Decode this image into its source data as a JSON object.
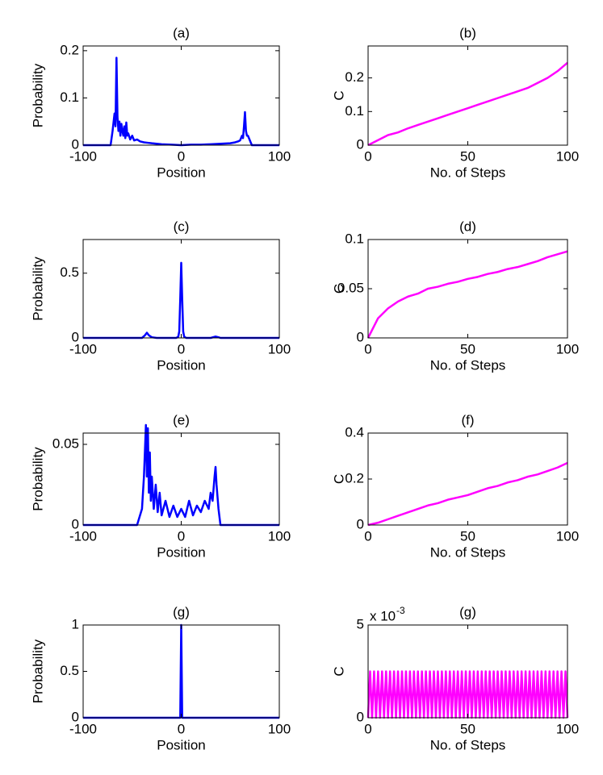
{
  "chart_data": [
    {
      "type": "line",
      "title": "(a)",
      "xlabel": "Position",
      "ylabel": "Probability",
      "x": [
        -100,
        -72,
        -70,
        -68,
        -67,
        -66,
        -65,
        -64,
        -63,
        -62,
        -61,
        -60,
        -59,
        -58,
        -57,
        -56,
        -55,
        -54,
        -52,
        -50,
        -48,
        -45,
        -42,
        -38,
        -34,
        -30,
        -25,
        -20,
        -10,
        0,
        10,
        20,
        30,
        40,
        50,
        55,
        58,
        60,
        62,
        63,
        64,
        65,
        66,
        67,
        68,
        70,
        72,
        100
      ],
      "series": [
        {
          "color": "#0000ff",
          "values": [
            0,
            0,
            0.03,
            0.067,
            0.04,
            0.185,
            0.06,
            0.03,
            0.05,
            0.02,
            0.045,
            0.03,
            0.02,
            0.04,
            0.015,
            0.048,
            0.02,
            0.025,
            0.012,
            0.02,
            0.01,
            0.012,
            0.008,
            0.006,
            0.005,
            0.004,
            0.003,
            0.002,
            0.001,
            0,
            0.001,
            0.001,
            0.002,
            0.003,
            0.004,
            0.006,
            0.008,
            0.01,
            0.02,
            0.015,
            0.04,
            0.07,
            0.03,
            0.02,
            0.02,
            0.01,
            0,
            0
          ]
        }
      ],
      "xlim": [
        -100,
        100
      ],
      "xticks": [
        -100,
        0,
        100
      ],
      "ylim": [
        0,
        0.21
      ],
      "yticks": [
        0,
        0.1,
        0.2
      ]
    },
    {
      "type": "line",
      "title": "(b)",
      "xlabel": "No. of Steps",
      "ylabel": "C",
      "x": [
        0,
        5,
        10,
        15,
        20,
        25,
        30,
        35,
        40,
        45,
        50,
        55,
        60,
        65,
        70,
        75,
        80,
        85,
        90,
        95,
        100
      ],
      "series": [
        {
          "color": "#ff00ff",
          "values": [
            0,
            0.015,
            0.03,
            0.038,
            0.05,
            0.06,
            0.07,
            0.08,
            0.09,
            0.1,
            0.11,
            0.12,
            0.13,
            0.14,
            0.15,
            0.16,
            0.17,
            0.185,
            0.2,
            0.22,
            0.245
          ]
        }
      ],
      "xlim": [
        0,
        100
      ],
      "xticks": [
        0,
        50,
        100
      ],
      "ylim": [
        0,
        0.295
      ],
      "yticks": [
        0,
        0.1,
        0.2
      ]
    },
    {
      "type": "line",
      "title": "(c)",
      "xlabel": "Position",
      "ylabel": "Probability",
      "x": [
        -100,
        -40,
        -37,
        -35,
        -33,
        -30,
        -25,
        -5,
        -3,
        -2,
        -1,
        0,
        1,
        2,
        3,
        5,
        30,
        35,
        38,
        40,
        100
      ],
      "series": [
        {
          "color": "#0000ff",
          "values": [
            0,
            0,
            0.02,
            0.04,
            0.02,
            0.005,
            0,
            0,
            0.01,
            0.05,
            0.3,
            0.58,
            0.3,
            0.05,
            0.01,
            0,
            0,
            0.01,
            0.005,
            0,
            0
          ]
        }
      ],
      "xlim": [
        -100,
        100
      ],
      "xticks": [
        -100,
        0,
        100
      ],
      "ylim": [
        0,
        0.76
      ],
      "yticks": [
        0,
        0.5
      ]
    },
    {
      "type": "line",
      "title": "(d)",
      "xlabel": "No. of Steps",
      "ylabel": "C",
      "x": [
        0,
        5,
        10,
        15,
        20,
        25,
        30,
        35,
        40,
        45,
        50,
        55,
        60,
        65,
        70,
        75,
        80,
        85,
        90,
        95,
        100
      ],
      "series": [
        {
          "color": "#ff00ff",
          "values": [
            0,
            0.02,
            0.03,
            0.037,
            0.042,
            0.045,
            0.05,
            0.052,
            0.055,
            0.057,
            0.06,
            0.062,
            0.065,
            0.067,
            0.07,
            0.072,
            0.075,
            0.078,
            0.082,
            0.085,
            0.088
          ]
        }
      ],
      "xlim": [
        0,
        100
      ],
      "xticks": [
        0,
        50,
        100
      ],
      "ylim": [
        0,
        0.1
      ],
      "yticks": [
        0,
        0.05,
        0.1
      ]
    },
    {
      "type": "line",
      "title": "(e)",
      "xlabel": "Position",
      "ylabel": "Probability",
      "x": [
        -100,
        -45,
        -40,
        -38,
        -36,
        -35,
        -34,
        -33,
        -32,
        -31,
        -30,
        -28,
        -26,
        -24,
        -22,
        -20,
        -16,
        -12,
        -8,
        -4,
        0,
        4,
        8,
        12,
        16,
        20,
        24,
        28,
        30,
        32,
        34,
        35,
        36,
        38,
        40,
        45,
        100
      ],
      "series": [
        {
          "color": "#0000ff",
          "values": [
            0,
            0,
            0.01,
            0.03,
            0.062,
            0.03,
            0.06,
            0.02,
            0.045,
            0.015,
            0.03,
            0.01,
            0.025,
            0.008,
            0.02,
            0.006,
            0.015,
            0.005,
            0.012,
            0.005,
            0.01,
            0.005,
            0.015,
            0.006,
            0.012,
            0.008,
            0.015,
            0.01,
            0.02,
            0.015,
            0.03,
            0.036,
            0.025,
            0.01,
            0,
            0,
            0
          ]
        }
      ],
      "xlim": [
        -100,
        100
      ],
      "xticks": [
        -100,
        0,
        100
      ],
      "ylim": [
        0,
        0.057
      ],
      "yticks": [
        0,
        0.05
      ]
    },
    {
      "type": "line",
      "title": "(f)",
      "xlabel": "No. of Steps",
      "ylabel": "C",
      "x": [
        0,
        5,
        10,
        15,
        20,
        25,
        30,
        35,
        40,
        45,
        50,
        55,
        60,
        65,
        70,
        75,
        80,
        85,
        90,
        95,
        100
      ],
      "series": [
        {
          "color": "#ff00ff",
          "values": [
            0,
            0.01,
            0.025,
            0.04,
            0.055,
            0.07,
            0.085,
            0.095,
            0.11,
            0.12,
            0.13,
            0.145,
            0.16,
            0.17,
            0.185,
            0.195,
            0.21,
            0.22,
            0.235,
            0.25,
            0.27
          ]
        }
      ],
      "xlim": [
        0,
        100
      ],
      "xticks": [
        0,
        50,
        100
      ],
      "ylim": [
        0,
        0.4
      ],
      "yticks": [
        0,
        0.2,
        0.4
      ]
    },
    {
      "type": "line",
      "title": "(g)",
      "xlabel": "Position",
      "ylabel": "Probability",
      "x": [
        -100,
        -1,
        0,
        1,
        100
      ],
      "series": [
        {
          "color": "#0000ff",
          "values": [
            0,
            0,
            1,
            0,
            0
          ]
        }
      ],
      "xlim": [
        -100,
        100
      ],
      "xticks": [
        -100,
        0,
        100
      ],
      "ylim": [
        0,
        1
      ],
      "yticks": [
        0,
        0.5,
        1
      ]
    },
    {
      "type": "line",
      "title": "(g)",
      "xlabel": "No. of Steps",
      "ylabel": "C",
      "exponent": {
        "base": "x 10",
        "power": "-3"
      },
      "x": [
        0,
        1,
        2,
        3,
        4,
        5,
        6,
        7,
        8,
        9,
        10,
        11,
        12,
        13,
        14,
        15,
        16,
        17,
        18,
        19,
        20,
        21,
        22,
        23,
        24,
        25,
        26,
        27,
        28,
        29,
        30,
        31,
        32,
        33,
        34,
        35,
        36,
        37,
        38,
        39,
        40,
        41,
        42,
        43,
        44,
        45,
        46,
        47,
        48,
        49,
        50,
        51,
        52,
        53,
        54,
        55,
        56,
        57,
        58,
        59,
        60,
        61,
        62,
        63,
        64,
        65,
        66,
        67,
        68,
        69,
        70,
        71,
        72,
        73,
        74,
        75,
        76,
        77,
        78,
        79,
        80,
        81,
        82,
        83,
        84,
        85,
        86,
        87,
        88,
        89,
        90,
        91,
        92,
        93,
        94,
        95,
        96,
        97,
        98,
        99,
        100
      ],
      "series": [
        {
          "color": "#ff00ff",
          "values": [
            0,
            2.5,
            0,
            2.5,
            0,
            2.5,
            0,
            2.5,
            0,
            2.5,
            0,
            2.5,
            0,
            2.5,
            0,
            2.5,
            0,
            2.5,
            0,
            2.5,
            0,
            2.5,
            0,
            2.5,
            0,
            2.5,
            0,
            2.5,
            0,
            2.5,
            0,
            2.5,
            0,
            2.5,
            0,
            2.5,
            0,
            2.5,
            0,
            2.5,
            0,
            2.5,
            0,
            2.5,
            0,
            2.5,
            0,
            2.5,
            0,
            2.5,
            0,
            2.5,
            0,
            2.5,
            0,
            2.5,
            0,
            2.5,
            0,
            2.5,
            0,
            2.5,
            0,
            2.5,
            0,
            2.5,
            0,
            2.5,
            0,
            2.5,
            0,
            2.5,
            0,
            2.5,
            0,
            2.5,
            0,
            2.5,
            0,
            2.5,
            0,
            2.5,
            0,
            2.5,
            0,
            2.5,
            0,
            2.5,
            0,
            2.5,
            0,
            2.5,
            0,
            2.5,
            0,
            2.5,
            0,
            2.5,
            0,
            2.5,
            0
          ]
        }
      ],
      "xlim": [
        0,
        100
      ],
      "xticks": [
        0,
        50,
        100
      ],
      "ylim": [
        0,
        5
      ],
      "yticks": [
        0,
        5
      ]
    }
  ]
}
